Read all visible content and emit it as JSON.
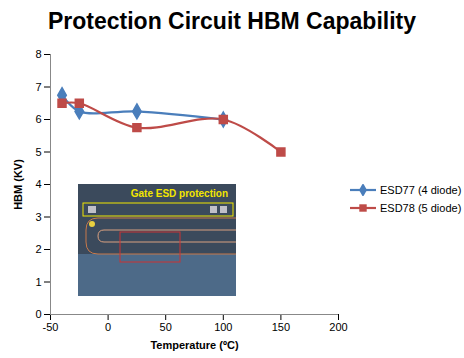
{
  "chart_data": {
    "type": "line",
    "title": "Protection Circuit HBM Capability",
    "x_label": "Temperature (ºC)",
    "y_label": "HBM (KV)",
    "series": [
      {
        "name": "ESD77 (4 diode)",
        "color": "#4a7ebb",
        "marker": "diamond",
        "line_style": "solid",
        "x": [
          -40,
          -25,
          25,
          100
        ],
        "values": [
          6.75,
          6.25,
          6.25,
          6.0
        ]
      },
      {
        "name": "ESD78 (5 diode)",
        "color": "#be4b48",
        "marker": "square",
        "line_style": "solid",
        "x": [
          -40,
          -25,
          25,
          100,
          150
        ],
        "values": [
          6.5,
          6.5,
          5.75,
          6.0,
          5.0
        ]
      }
    ],
    "xlim": [
      -50,
      200
    ],
    "ylim": [
      0,
      8
    ],
    "xticks": [
      -50,
      0,
      50,
      100,
      150,
      200
    ],
    "yticks": [
      0,
      1,
      2,
      3,
      4,
      5,
      6,
      7,
      8
    ],
    "grid": false,
    "legend": "right",
    "annotations": [
      {
        "text": "Gate ESD protection"
      }
    ]
  }
}
